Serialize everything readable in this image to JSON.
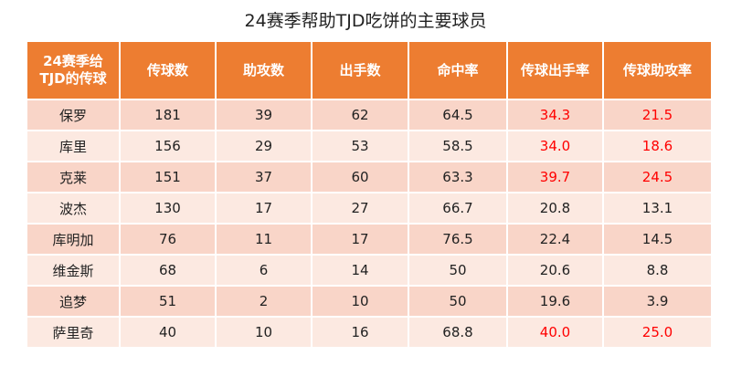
{
  "title": "24赛季帮助TJD吃饼的主要球员",
  "table": {
    "header_color": "#ed7d31",
    "columns": [
      "24赛季给\nTJD的传球",
      "传球数",
      "助攻数",
      "出手数",
      "命中率",
      "传球出手率",
      "传球助攻率"
    ],
    "rows": [
      [
        "保罗",
        "181",
        "39",
        "62",
        "64.5",
        {
          "text": "34.3",
          "color": "#ff0000"
        },
        {
          "text": "21.5",
          "color": "#ff0000"
        }
      ],
      [
        "库里",
        "156",
        "29",
        "53",
        "58.5",
        {
          "text": "34.0",
          "color": "#ff0000"
        },
        {
          "text": "18.6",
          "color": "#ff0000"
        }
      ],
      [
        "克莱",
        "151",
        "37",
        "60",
        "63.3",
        {
          "text": "39.7",
          "color": "#ff0000"
        },
        {
          "text": "24.5",
          "color": "#ff0000"
        }
      ],
      [
        "波杰",
        "130",
        "17",
        "27",
        "66.7",
        "20.8",
        "13.1"
      ],
      [
        "库明加",
        "76",
        "11",
        "17",
        "76.5",
        "22.4",
        "14.5"
      ],
      [
        "维金斯",
        "68",
        "6",
        "14",
        "50",
        "20.6",
        "8.8"
      ],
      [
        "追梦",
        "51",
        "2",
        "10",
        "50",
        "19.6",
        "3.9"
      ],
      [
        "萨里奇",
        "40",
        "10",
        "16",
        "68.8",
        {
          "text": "40.0",
          "color": "#ff0000"
        },
        {
          "text": "25.0",
          "color": "#ff0000"
        }
      ]
    ]
  }
}
